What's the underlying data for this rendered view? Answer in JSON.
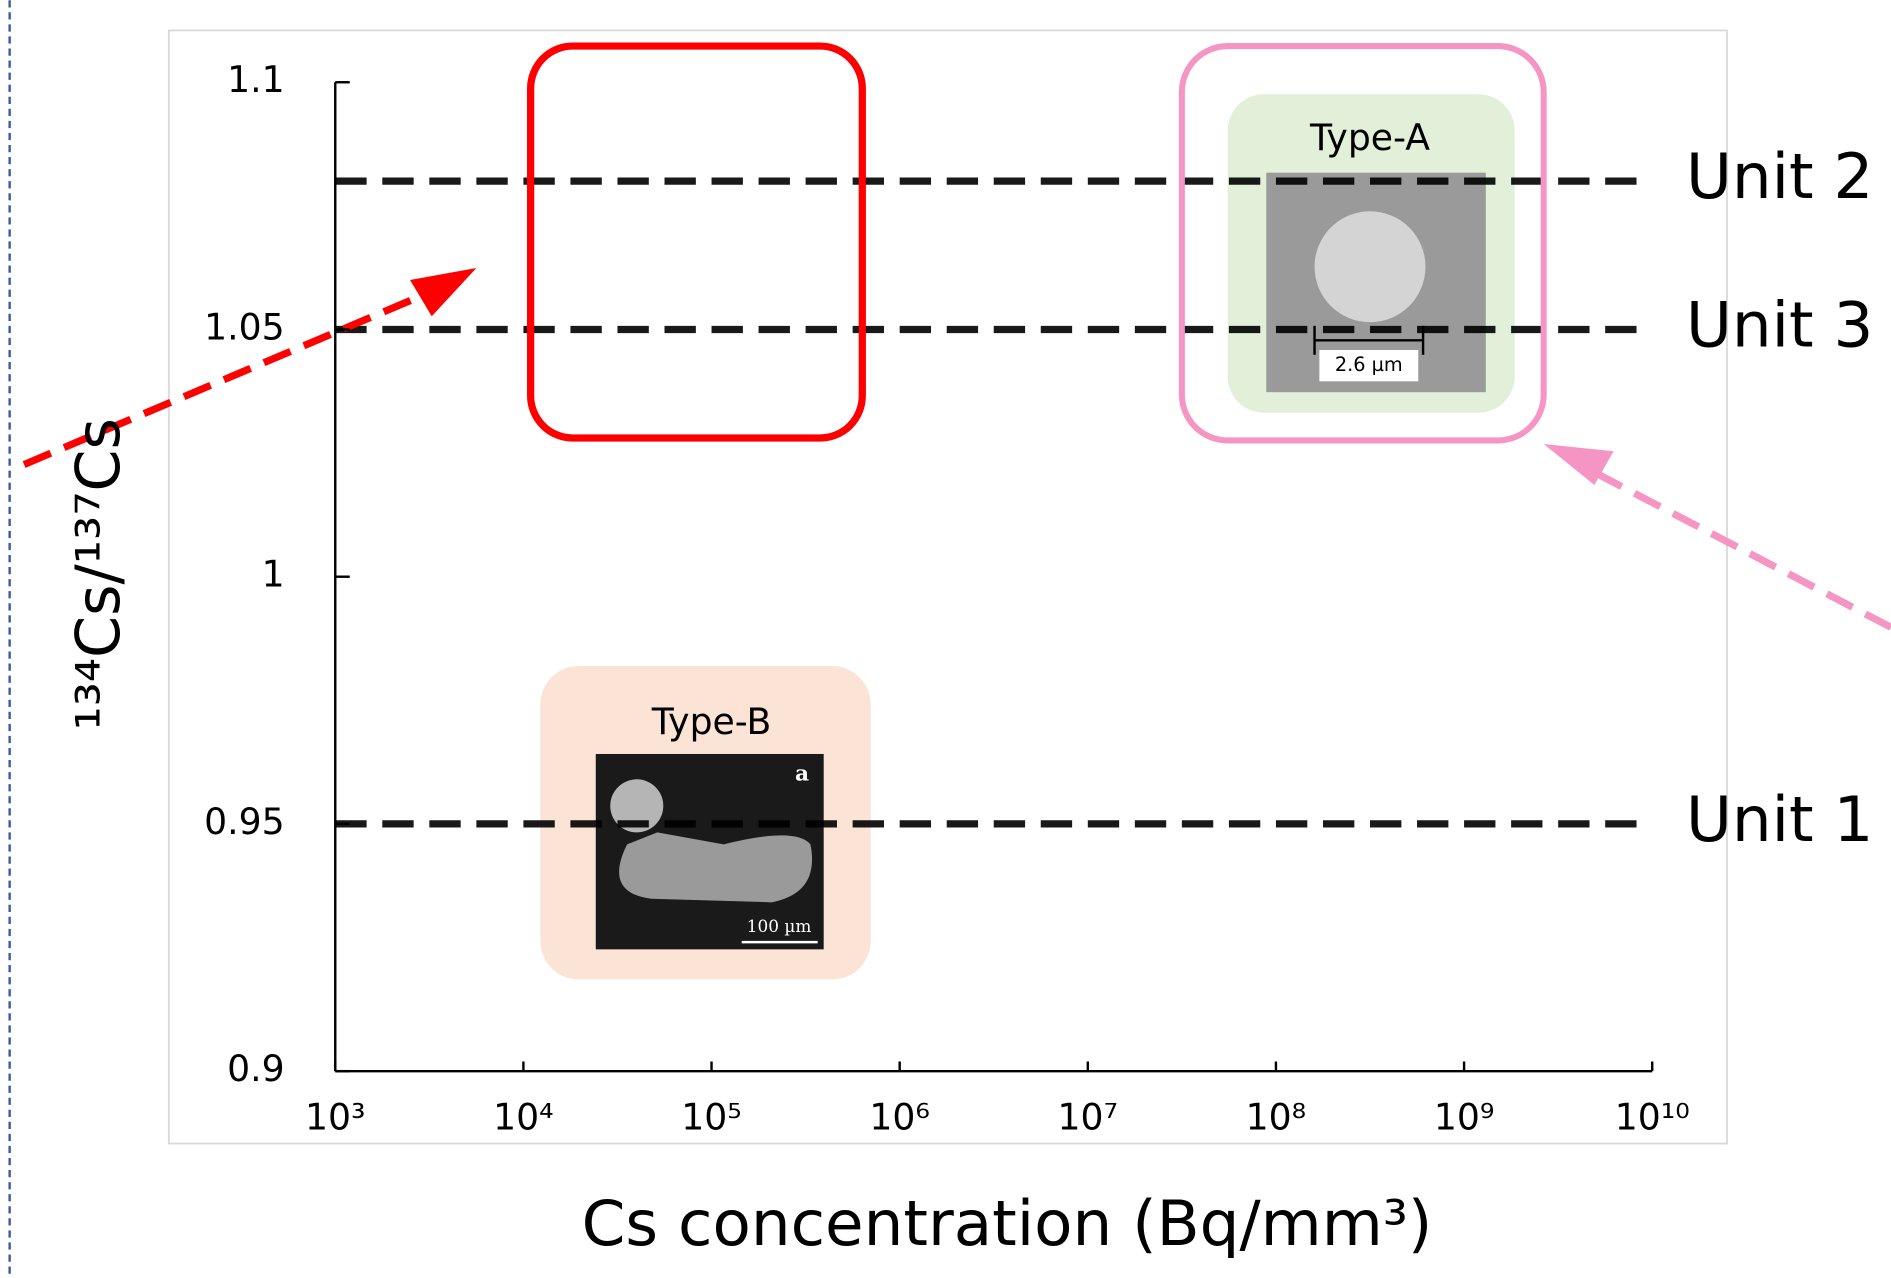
{
  "chart_data": {
    "type": "line",
    "x_label": "Cs concentration (Bq/mm³)",
    "y_label": "¹³⁴Cs/¹³⁷Cs",
    "x": [
      1000,
      10000000000
    ],
    "series": [
      {
        "name": "Unit 2",
        "color": "#000000",
        "values": [
          1.08,
          1.08
        ]
      },
      {
        "name": "Unit 3",
        "color": "#000000",
        "values": [
          1.05,
          1.05
        ]
      },
      {
        "name": "Unit 1",
        "color": "#000000",
        "values": [
          0.95,
          0.95
        ]
      }
    ],
    "log_x": true,
    "xlim": [
      1000,
      10000000000
    ],
    "xticks": [
      {
        "value": 1000,
        "label": "10³"
      },
      {
        "value": 10000,
        "label": "10⁴"
      },
      {
        "value": 100000,
        "label": "10⁵"
      },
      {
        "value": 1000000,
        "label": "10⁶"
      },
      {
        "value": 10000000,
        "label": "10⁷"
      },
      {
        "value": 100000000,
        "label": "10⁸"
      },
      {
        "value": 1000000000,
        "label": "10⁹"
      },
      {
        "value": 10000000000,
        "label": "10¹⁰"
      }
    ],
    "ylim": [
      0.9,
      1.1
    ],
    "yticks": [
      0.9,
      0.95,
      1,
      1.05,
      1.1
    ],
    "annotations": [
      "Type-A",
      "2.6 µm",
      "Type-B",
      "a",
      "100 µm"
    ]
  }
}
